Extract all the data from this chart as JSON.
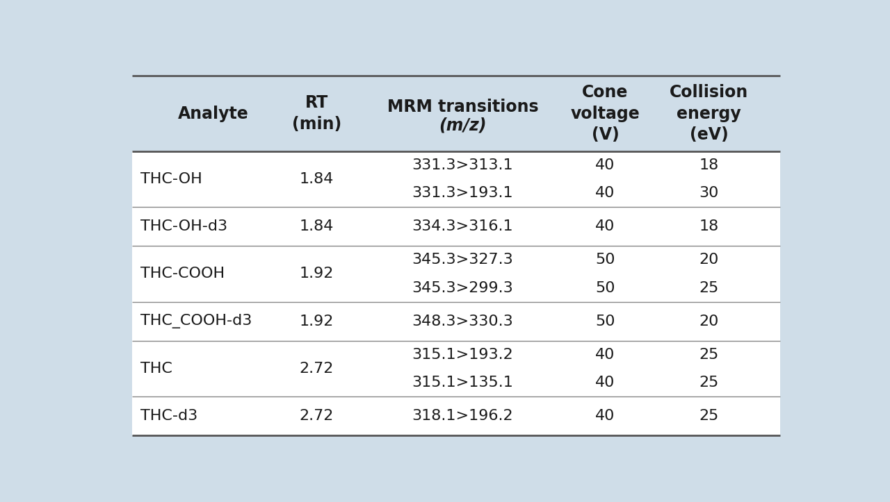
{
  "background_color": "#cfdde8",
  "header_bg": "#cfdde8",
  "data_bg": "#ffffff",
  "line_color": "#888888",
  "thick_line_color": "#555555",
  "text_color": "#1a1a1a",
  "font_size": 16,
  "header_font_size": 17,
  "rows": [
    {
      "analyte": "THC-OH",
      "rt": "1.84",
      "mrm": [
        "331.3>313.1",
        "331.3>193.1"
      ],
      "cone": [
        "40",
        "40"
      ],
      "collision": [
        "18",
        "30"
      ],
      "span": 2
    },
    {
      "analyte": "THC-OH-d3",
      "rt": "1.84",
      "mrm": [
        "334.3>316.1"
      ],
      "cone": [
        "40"
      ],
      "collision": [
        "18"
      ],
      "span": 1
    },
    {
      "analyte": "THC-COOH",
      "rt": "1.92",
      "mrm": [
        "345.3>327.3",
        "345.3>299.3"
      ],
      "cone": [
        "50",
        "50"
      ],
      "collision": [
        "20",
        "25"
      ],
      "span": 2
    },
    {
      "analyte": "THC_COOH-d3",
      "rt": "1.92",
      "mrm": [
        "348.3>330.3"
      ],
      "cone": [
        "50"
      ],
      "collision": [
        "20"
      ],
      "span": 1
    },
    {
      "analyte": "THC",
      "rt": "2.72",
      "mrm": [
        "315.1>193.2",
        "315.1>135.1"
      ],
      "cone": [
        "40",
        "40"
      ],
      "collision": [
        "25",
        "25"
      ],
      "span": 2
    },
    {
      "analyte": "THC-d3",
      "rt": "2.72",
      "mrm": [
        "318.1>196.2"
      ],
      "cone": [
        "40"
      ],
      "collision": [
        "25"
      ],
      "span": 1
    }
  ]
}
